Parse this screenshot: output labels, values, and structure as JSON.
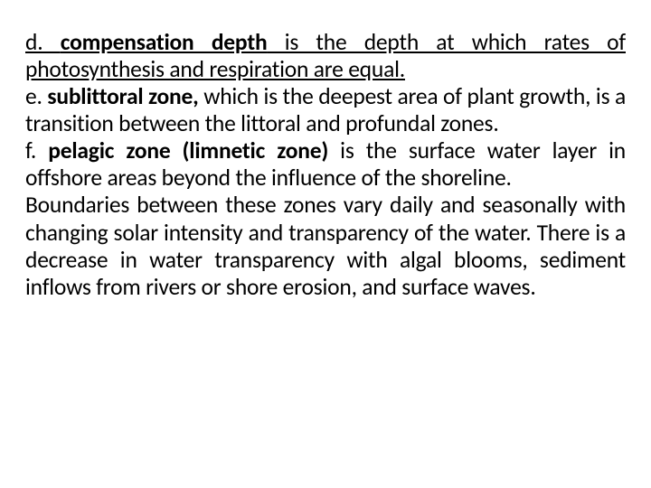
{
  "doc": {
    "background_color": "#ffffff",
    "text_color": "#000000",
    "font_family": "Calibri",
    "font_size_pt": 19,
    "line_height": 1.18,
    "text_align": "justify",
    "runs": {
      "d_prefix": "d. ",
      "d_term": "compensation depth",
      "d_rest": " is the depth at which rates of photosynthesis and respiration are equal.",
      "e_prefix": "e. ",
      "e_term": "sublittoral zone,",
      "e_rest": " which is the deepest area of plant growth, is a transition between the littoral and profundal zones.",
      "f_prefix": "f. ",
      "f_term": "pelagic zone (limnetic zone)",
      "f_rest": " is the surface water layer in offshore areas beyond the influence of the shoreline.",
      "tail": "Boundaries between these zones vary daily and seasonally with changing solar intensity and transparency of the water. There is a decrease in water transparency with algal blooms, sediment inflows from rivers or shore erosion, and surface waves."
    }
  }
}
